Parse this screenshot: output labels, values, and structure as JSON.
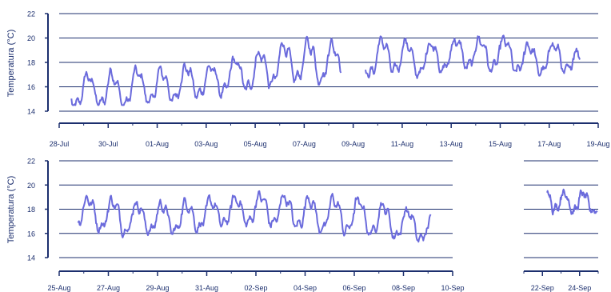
{
  "chart_data": [
    {
      "type": "line",
      "title": "",
      "xlabel": "",
      "ylabel": "Temperatura (°C)",
      "ylim": [
        14,
        22
      ],
      "yticks": [
        14,
        16,
        18,
        20,
        22
      ],
      "xlim": [
        "2010-07-28",
        "2010-08-19"
      ],
      "x_tick_labels": [
        "28-Jul",
        "30-Jul",
        "01-Aug",
        "03-Aug",
        "05-Aug",
        "07-Aug",
        "09-Aug",
        "11-Aug",
        "13-Aug",
        "15-Aug",
        "17-Aug",
        "19-Aug"
      ],
      "grid": true,
      "line_color": "#6b6bdc",
      "axis_color": "#1c2f6e",
      "series": [
        {
          "x": [
            "2010-07-28T12:00",
            "2010-07-29T00:00",
            "2010-07-29T12:00",
            "2010-07-30T00:00",
            "2010-07-30T12:00",
            "2010-07-31T00:00",
            "2010-07-31T12:00",
            "2010-08-01T00:00",
            "2010-08-01T12:00",
            "2010-08-02T00:00",
            "2010-08-02T12:00",
            "2010-08-03T00:00",
            "2010-08-03T12:00",
            "2010-08-04T00:00",
            "2010-08-04T12:00",
            "2010-08-05T00:00",
            "2010-08-05T12:00",
            "2010-08-06T00:00",
            "2010-08-06T12:00",
            "2010-08-07T00:00",
            "2010-08-07T12:00",
            "2010-08-08T00:00",
            "2010-08-08T12:00"
          ],
          "y": [
            15.5,
            15.6,
            15.7,
            15.8,
            15.6,
            15.9,
            16.1,
            15.9,
            16.0,
            16.3,
            16.5,
            16.4,
            16.6,
            16.8,
            17.0,
            17.2,
            17.6,
            17.9,
            18.0,
            18.0,
            18.1,
            18.2,
            17.8
          ],
          "amplitude": [
            1.1,
            1.3,
            1.2,
            1.4,
            1.3,
            1.3,
            1.2,
            1.4,
            1.2,
            1.2,
            1.3,
            1.1,
            1.2,
            1.3,
            1.2,
            1.4,
            1.5,
            1.6,
            1.4,
            1.5,
            1.6,
            1.5,
            1.3
          ]
        },
        {
          "x": [
            "2010-08-09T12:00",
            "2010-08-10T00:00",
            "2010-08-10T12:00",
            "2010-08-11T00:00",
            "2010-08-11T12:00",
            "2010-08-12T00:00",
            "2010-08-12T12:00",
            "2010-08-13T00:00",
            "2010-08-13T12:00",
            "2010-08-14T00:00",
            "2010-08-14T12:00",
            "2010-08-15T00:00",
            "2010-08-15T12:00",
            "2010-08-16T00:00",
            "2010-08-16T12:00",
            "2010-08-17T00:00",
            "2010-08-17T12:00",
            "2010-08-18T00:00",
            "2010-08-18T06:00"
          ],
          "y": [
            18.2,
            18.3,
            18.6,
            18.4,
            18.2,
            18.3,
            18.5,
            18.6,
            18.8,
            18.7,
            18.6,
            18.7,
            18.5,
            18.3,
            18.2,
            18.3,
            18.4,
            18.1,
            17.8
          ],
          "amplitude": [
            1.2,
            1.4,
            1.3,
            1.4,
            1.3,
            1.2,
            1.3,
            1.1,
            1.2,
            1.2,
            1.3,
            1.1,
            1.3,
            1.2,
            1.1,
            1.2,
            1.2,
            1.1,
            0.9
          ]
        }
      ]
    },
    {
      "type": "line",
      "title": "",
      "xlabel": "",
      "ylabel": "Temperatura (°C)",
      "ylim": [
        14,
        22
      ],
      "yticks": [
        14,
        16,
        18,
        20,
        22
      ],
      "xlim": [
        "2010-08-25",
        "2010-09-10"
      ],
      "x_tick_labels": [
        "25-Aug",
        "27-Aug",
        "29-Aug",
        "31-Aug",
        "02-Sep",
        "04-Sep",
        "06-Sep",
        "08-Sep",
        "10-Sep"
      ],
      "grid": true,
      "line_color": "#6b6bdc",
      "axis_color": "#1c2f6e",
      "series": [
        {
          "x": [
            "2010-08-25T18:00",
            "2010-08-26T12:00",
            "2010-08-27T12:00",
            "2010-08-28T12:00",
            "2010-08-29T12:00",
            "2010-08-30T12:00",
            "2010-08-31T12:00",
            "2010-09-01T12:00",
            "2010-09-02T12:00",
            "2010-09-03T12:00",
            "2010-09-04T12:00",
            "2010-09-05T12:00",
            "2010-09-06T12:00",
            "2010-09-07T12:00",
            "2010-09-08T12:00",
            "2010-09-09T03:00"
          ],
          "y": [
            17.8,
            17.7,
            17.4,
            17.3,
            17.2,
            17.5,
            17.7,
            17.9,
            18.0,
            17.8,
            17.6,
            17.5,
            17.3,
            17.0,
            16.6,
            16.2
          ],
          "amplitude": [
            1.1,
            1.2,
            1.2,
            1.1,
            1.2,
            1.1,
            1.0,
            1.1,
            1.2,
            1.2,
            1.3,
            1.3,
            1.3,
            1.2,
            1.1,
            0.9
          ]
        }
      ]
    },
    {
      "type": "line",
      "title": "",
      "xlabel": "",
      "ylabel": "",
      "ylim": [
        14,
        22
      ],
      "yticks": [
        14,
        16,
        18,
        20,
        22
      ],
      "xlim": [
        "2010-09-21",
        "2010-09-25"
      ],
      "x_tick_labels": [
        "22-Sep",
        "24-Sep"
      ],
      "grid": true,
      "line_color": "#6b6bdc",
      "axis_color": "#1c2f6e",
      "series": [
        {
          "x": [
            "2010-09-22T06:00",
            "2010-09-22T18:00",
            "2010-09-23T06:00",
            "2010-09-23T18:00",
            "2010-09-24T06:00",
            "2010-09-24T18:00",
            "2010-09-24T23:00"
          ],
          "y": [
            18.9,
            18.8,
            18.6,
            18.5,
            18.7,
            18.4,
            18.0
          ],
          "amplitude": [
            0.9,
            0.8,
            0.7,
            0.7,
            0.6,
            0.6,
            0.5
          ]
        }
      ]
    }
  ]
}
